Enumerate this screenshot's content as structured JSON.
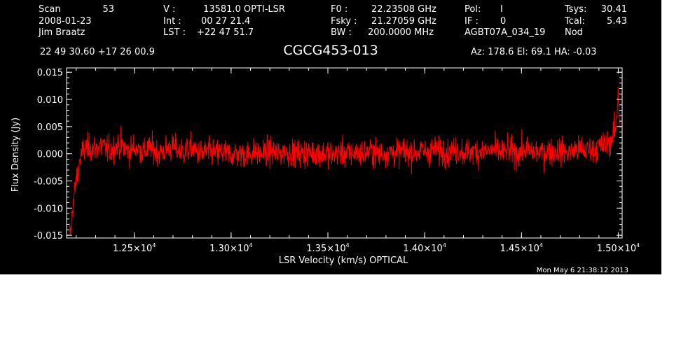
{
  "header": {
    "col1": [
      "Scan",
      "2008-01-23",
      "Jim Braatz"
    ],
    "scan_number": "53",
    "col2": [
      "V   :",
      "Int  :",
      "LST :"
    ],
    "col2_values": [
      "13581.0 OPTI-LSR",
      "00 27 21.4",
      "+22 47 51.7"
    ],
    "col3": [
      "F0   :",
      "Fsky :",
      "BW   :"
    ],
    "col3_values": [
      "22.23508 GHz",
      "21.27059 GHz",
      "200.0000 MHz"
    ],
    "col4": [
      "Pol:",
      "IF :",
      "AGBT07A_034_19"
    ],
    "col4_values": [
      "I",
      "0"
    ],
    "col5": [
      "Tsys:",
      "Tcal:",
      "Nod"
    ],
    "col5_values": [
      "30.41",
      "5.43"
    ],
    "coords": "22 49 30.60  +17 26 00.9",
    "source": "CGCG453-013",
    "pointing": "Az: 178.6  El:  69.1  HA: -0.03"
  },
  "footer": {
    "timestamp": "Mon May  6 21:38:12 2013"
  },
  "chart_data": {
    "type": "line",
    "title": "CGCG453-013",
    "xlabel": "LSR Velocity (km/s) OPTICAL",
    "ylabel": "Flux Density (Jy)",
    "xlim": [
      12150,
      15020
    ],
    "ylim": [
      -0.0155,
      0.0158
    ],
    "x_ticks": [
      {
        "mantissa": "1.25",
        "exponent": "4",
        "value": 12500
      },
      {
        "mantissa": "1.30",
        "exponent": "4",
        "value": 13000
      },
      {
        "mantissa": "1.35",
        "exponent": "4",
        "value": 13500
      },
      {
        "mantissa": "1.40",
        "exponent": "4",
        "value": 14000
      },
      {
        "mantissa": "1.45",
        "exponent": "4",
        "value": 14500
      },
      {
        "mantissa": "1.50",
        "exponent": "4",
        "value": 15000
      }
    ],
    "x_tick_times": "×10",
    "y_ticks": [
      {
        "label": "0.015",
        "value": 0.015
      },
      {
        "label": "0.010",
        "value": 0.01
      },
      {
        "label": "0.005",
        "value": 0.005
      },
      {
        "label": "0.000",
        "value": 0.0
      },
      {
        "label": "-0.005",
        "value": -0.005
      },
      {
        "label": "-0.010",
        "value": -0.01
      },
      {
        "label": "-0.015",
        "value": -0.015
      }
    ],
    "grid": false,
    "series_color": "#ff0000",
    "series": [
      {
        "x": [
          12165,
          12170,
          12175,
          12180,
          12190,
          12200,
          12210,
          12220,
          12235,
          12250,
          12275,
          12300,
          12325,
          12350,
          12375,
          12400,
          12425,
          12450,
          12475,
          12500,
          12525,
          12550,
          12575,
          12600,
          12625,
          12650,
          12675,
          12700,
          12725,
          12750,
          12775,
          12800,
          12825,
          12850,
          12875,
          12900,
          12925,
          12950,
          12975,
          13000,
          13025,
          13050,
          13075,
          13100,
          13125,
          13150,
          13175,
          13200,
          13225,
          13250,
          13275,
          13300,
          13325,
          13350,
          13375,
          13400,
          13425,
          13450,
          13475,
          13500,
          13525,
          13550,
          13575,
          13600,
          13625,
          13650,
          13675,
          13700,
          13725,
          13750,
          13775,
          13800,
          13825,
          13850,
          13875,
          13900,
          13925,
          13950,
          13975,
          14000,
          14025,
          14050,
          14075,
          14100,
          14125,
          14150,
          14175,
          14200,
          14225,
          14250,
          14275,
          14300,
          14325,
          14350,
          14375,
          14400,
          14425,
          14450,
          14475,
          14500,
          14525,
          14550,
          14575,
          14600,
          14625,
          14650,
          14675,
          14700,
          14725,
          14750,
          14775,
          14800,
          14825,
          14850,
          14875,
          14900,
          14925,
          14950,
          14970,
          14985,
          14990,
          14995,
          15000,
          15003,
          15006
        ],
        "y": [
          -0.0145,
          -0.0148,
          -0.0125,
          -0.01,
          -0.0075,
          -0.005,
          -0.003,
          -0.001,
          0.0005,
          0.001,
          0.0012,
          0.0008,
          0.0015,
          0.001,
          0.0005,
          0.0012,
          0.0018,
          0.001,
          0.0005,
          0.0012,
          0.0008,
          0.0003,
          0.001,
          0.0007,
          0.0002,
          0.0005,
          0.0009,
          0.0012,
          0.0006,
          0.0003,
          0.0008,
          0.001,
          0.0004,
          0.0,
          0.0005,
          0.0002,
          0.0,
          0.0004,
          0.0001,
          -0.0002,
          0.0002,
          0.0,
          -0.0003,
          0.0001,
          0.0003,
          0.0,
          0.0002,
          0.0005,
          0.0001,
          0.0,
          0.0004,
          0.0002,
          -0.0001,
          0.0003,
          0.0,
          0.0002,
          0.0001,
          0.0004,
          0.0,
          0.0002,
          -0.0002,
          0.0001,
          0.0003,
          0.0,
          0.0001,
          0.0002,
          -0.0001,
          0.0003,
          0.0005,
          0.0001,
          0.0,
          0.0002,
          0.0004,
          0.0001,
          0.0003,
          0.0005,
          0.0002,
          0.0004,
          0.0006,
          0.0003,
          0.0005,
          0.0008,
          0.0004,
          0.0006,
          0.0003,
          0.0005,
          0.0007,
          0.0004,
          0.0002,
          0.0005,
          0.0003,
          0.0006,
          0.0004,
          0.0007,
          0.0005,
          0.0003,
          0.0006,
          0.0004,
          0.0002,
          0.0005,
          0.0007,
          0.0003,
          0.0005,
          0.0002,
          0.0004,
          0.0006,
          0.0003,
          0.0005,
          0.0002,
          0.0004,
          0.0006,
          0.0008,
          0.0005,
          0.0007,
          0.001,
          0.0012,
          0.0015,
          0.002,
          0.003,
          0.0045,
          0.006,
          0.008,
          0.0125,
          0.0095,
          0.006
        ]
      }
    ],
    "noise_rms": 0.0018
  }
}
